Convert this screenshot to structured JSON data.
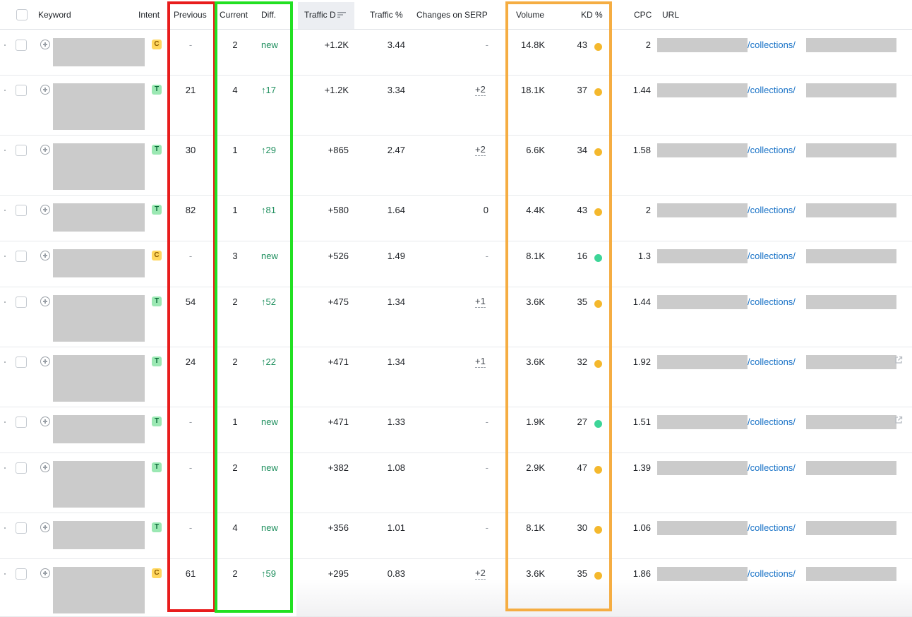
{
  "headers": {
    "keyword": "Keyword",
    "intent": "Intent",
    "previous": "Previous",
    "current": "Current",
    "diff": "Diff.",
    "traffic_diff": "Traffic D",
    "traffic_pct": "Traffic %",
    "changes_on_serp": "Changes on SERP",
    "volume": "Volume",
    "kd": "KD %",
    "cpc": "CPC",
    "url": "URL"
  },
  "colors": {
    "intent_c_bg": "#ffd75e",
    "intent_c_fg": "#8a5a00",
    "intent_t_bg": "#9be8b3",
    "intent_t_fg": "#0b6b3a",
    "kd_orange": "#f4b82d",
    "kd_green": "#3dd598",
    "diff_green": "#1f8f5e",
    "link_blue": "#1a73c7",
    "highlight_red": "#e81c1c",
    "highlight_green": "#22e022",
    "highlight_orange": "#f5ad42"
  },
  "rows": [
    {
      "intent": "C",
      "previous": "-",
      "current": "2",
      "diff": "new",
      "traffic_diff": "+1.2K",
      "traffic_pct": "3.44",
      "serp": "-",
      "volume": "14.8K",
      "kd": "43",
      "kd_color": "orange",
      "cpc": "2",
      "url_path": "/collections/",
      "external_icon": false
    },
    {
      "intent": "T",
      "previous": "21",
      "current": "4",
      "diff": "↑17",
      "traffic_diff": "+1.2K",
      "traffic_pct": "3.34",
      "serp": "+2",
      "volume": "18.1K",
      "kd": "37",
      "kd_color": "orange",
      "cpc": "1.44",
      "url_path": "/collections/",
      "external_icon": false
    },
    {
      "intent": "T",
      "previous": "30",
      "current": "1",
      "diff": "↑29",
      "traffic_diff": "+865",
      "traffic_pct": "2.47",
      "serp": "+2",
      "volume": "6.6K",
      "kd": "34",
      "kd_color": "orange",
      "cpc": "1.58",
      "url_path": "/collections/",
      "external_icon": false
    },
    {
      "intent": "T",
      "previous": "82",
      "current": "1",
      "diff": "↑81",
      "traffic_diff": "+580",
      "traffic_pct": "1.64",
      "serp": "0",
      "volume": "4.4K",
      "kd": "43",
      "kd_color": "orange",
      "cpc": "2",
      "url_path": "/collections/",
      "external_icon": false
    },
    {
      "intent": "C",
      "previous": "-",
      "current": "3",
      "diff": "new",
      "traffic_diff": "+526",
      "traffic_pct": "1.49",
      "serp": "-",
      "volume": "8.1K",
      "kd": "16",
      "kd_color": "green",
      "cpc": "1.3",
      "url_path": "/collections/",
      "external_icon": false
    },
    {
      "intent": "T",
      "previous": "54",
      "current": "2",
      "diff": "↑52",
      "traffic_diff": "+475",
      "traffic_pct": "1.34",
      "serp": "+1",
      "volume": "3.6K",
      "kd": "35",
      "kd_color": "orange",
      "cpc": "1.44",
      "url_path": "/collections/",
      "external_icon": false
    },
    {
      "intent": "T",
      "previous": "24",
      "current": "2",
      "diff": "↑22",
      "traffic_diff": "+471",
      "traffic_pct": "1.34",
      "serp": "+1",
      "volume": "3.6K",
      "kd": "32",
      "kd_color": "orange",
      "cpc": "1.92",
      "url_path": "/collections/",
      "external_icon": true
    },
    {
      "intent": "T",
      "previous": "-",
      "current": "1",
      "diff": "new",
      "traffic_diff": "+471",
      "traffic_pct": "1.33",
      "serp": "-",
      "volume": "1.9K",
      "kd": "27",
      "kd_color": "green",
      "cpc": "1.51",
      "url_path": "/collections/",
      "external_icon": true
    },
    {
      "intent": "T",
      "previous": "-",
      "current": "2",
      "diff": "new",
      "traffic_diff": "+382",
      "traffic_pct": "1.08",
      "serp": "-",
      "volume": "2.9K",
      "kd": "47",
      "kd_color": "orange",
      "cpc": "1.39",
      "url_path": "/collections/",
      "external_icon": false
    },
    {
      "intent": "T",
      "previous": "-",
      "current": "4",
      "diff": "new",
      "traffic_diff": "+356",
      "traffic_pct": "1.01",
      "serp": "-",
      "volume": "8.1K",
      "kd": "30",
      "kd_color": "orange",
      "cpc": "1.06",
      "url_path": "/collections/",
      "external_icon": false
    },
    {
      "intent": "C",
      "previous": "61",
      "current": "2",
      "diff": "↑59",
      "traffic_diff": "+295",
      "traffic_pct": "0.83",
      "serp": "+2",
      "volume": "3.6K",
      "kd": "35",
      "kd_color": "orange",
      "cpc": "1.86",
      "url_path": "/collections/",
      "external_icon": false
    }
  ]
}
